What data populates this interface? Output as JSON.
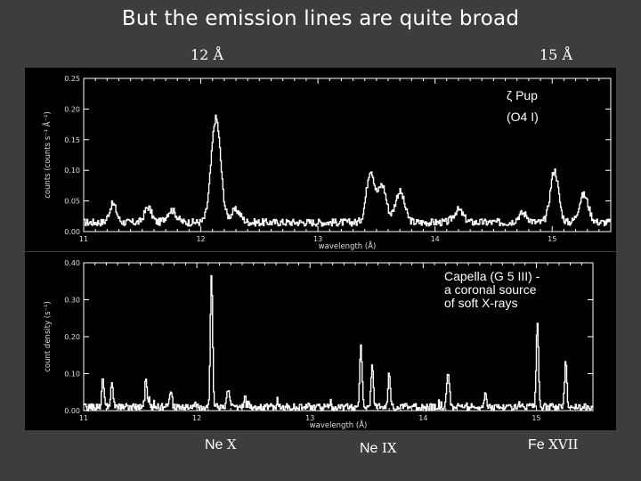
{
  "slide": {
    "title": "But the emission lines are quite broad",
    "marker_left": "12 Å",
    "marker_right": "15 Å"
  },
  "ions": [
    {
      "element": "Ne",
      "stage": "X"
    },
    {
      "element": "Ne",
      "stage": "IX"
    },
    {
      "element": "Fe",
      "stage": "XVII"
    }
  ],
  "chart_data": [
    {
      "type": "line",
      "label_lines": [
        "ζ Pup",
        "(O4 I)"
      ],
      "xlabel": "wavelength (Å)",
      "ylabel": "counts (counts s⁻¹ Å⁻¹)",
      "xlim": [
        11,
        15.5
      ],
      "ylim": [
        0,
        0.25
      ],
      "x_ticks": [
        "11",
        "12",
        "13",
        "14",
        "15"
      ],
      "y_ticks": [
        "0.00",
        "0.05",
        "0.10",
        "0.15",
        "0.20",
        "0.25"
      ],
      "baseline": 0.015,
      "peaks": [
        {
          "x": 11.25,
          "y": 0.03,
          "w": 0.03
        },
        {
          "x": 11.55,
          "y": 0.025,
          "w": 0.03
        },
        {
          "x": 11.75,
          "y": 0.02,
          "w": 0.04
        },
        {
          "x": 12.13,
          "y": 0.17,
          "w": 0.04
        },
        {
          "x": 12.3,
          "y": 0.02,
          "w": 0.04
        },
        {
          "x": 13.45,
          "y": 0.085,
          "w": 0.035
        },
        {
          "x": 13.55,
          "y": 0.06,
          "w": 0.035
        },
        {
          "x": 13.7,
          "y": 0.05,
          "w": 0.04
        },
        {
          "x": 14.2,
          "y": 0.02,
          "w": 0.04
        },
        {
          "x": 14.75,
          "y": 0.015,
          "w": 0.04
        },
        {
          "x": 15.02,
          "y": 0.085,
          "w": 0.035
        },
        {
          "x": 15.27,
          "y": 0.045,
          "w": 0.04
        }
      ]
    },
    {
      "type": "line",
      "label_lines": [
        "Capella (G 5 III) -",
        "a coronal source",
        "of soft X-rays"
      ],
      "xlabel": "wavelength (Å)",
      "ylabel": "count density (s⁻¹)",
      "xlim": [
        11,
        15.5
      ],
      "ylim": [
        0,
        0.4
      ],
      "x_ticks": [
        "11",
        "12",
        "13",
        "14",
        "15"
      ],
      "y_ticks": [
        "0.00",
        "0.10",
        "0.20",
        "0.30",
        "0.40"
      ],
      "baseline": 0.01,
      "peaks": [
        {
          "x": 11.17,
          "y": 0.08,
          "w": 0.01
        },
        {
          "x": 11.25,
          "y": 0.06,
          "w": 0.01
        },
        {
          "x": 11.55,
          "y": 0.07,
          "w": 0.01
        },
        {
          "x": 11.77,
          "y": 0.04,
          "w": 0.012
        },
        {
          "x": 12.13,
          "y": 0.36,
          "w": 0.01
        },
        {
          "x": 12.28,
          "y": 0.05,
          "w": 0.012
        },
        {
          "x": 12.43,
          "y": 0.03,
          "w": 0.012
        },
        {
          "x": 13.45,
          "y": 0.17,
          "w": 0.01
        },
        {
          "x": 13.55,
          "y": 0.12,
          "w": 0.01
        },
        {
          "x": 13.7,
          "y": 0.09,
          "w": 0.01
        },
        {
          "x": 14.22,
          "y": 0.1,
          "w": 0.012
        },
        {
          "x": 14.55,
          "y": 0.03,
          "w": 0.012
        },
        {
          "x": 15.01,
          "y": 0.22,
          "w": 0.01
        },
        {
          "x": 15.26,
          "y": 0.12,
          "w": 0.01
        }
      ]
    }
  ]
}
